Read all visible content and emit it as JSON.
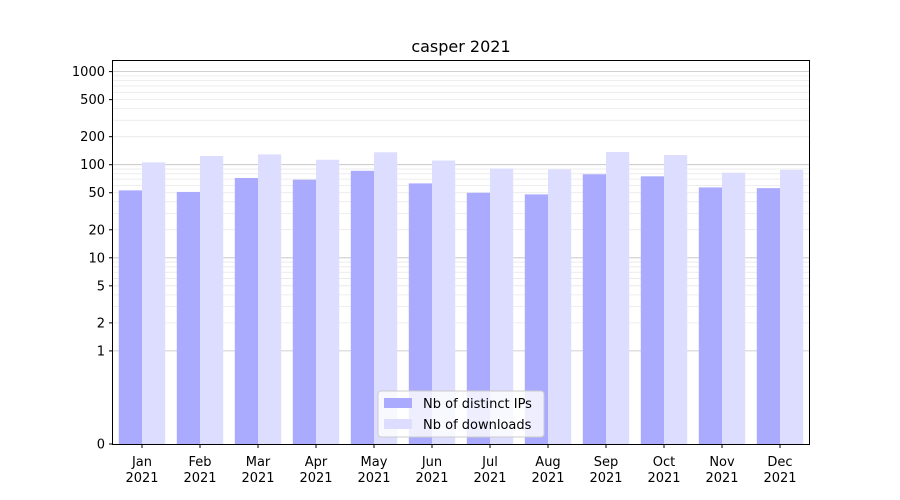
{
  "chart_data": {
    "type": "bar",
    "title": "casper 2021",
    "xlabel": "",
    "ylabel": "",
    "yscale": "symlog",
    "ylim": [
      0,
      1300
    ],
    "yticks": [
      0,
      1,
      2,
      5,
      10,
      20,
      50,
      100,
      200,
      500,
      1000
    ],
    "ytick_labels": [
      "0",
      "1",
      "2",
      "5",
      "10",
      "20",
      "50",
      "100",
      "200",
      "500",
      "1000"
    ],
    "categories": [
      [
        "Jan",
        "2021"
      ],
      [
        "Feb",
        "2021"
      ],
      [
        "Mar",
        "2021"
      ],
      [
        "Apr",
        "2021"
      ],
      [
        "May",
        "2021"
      ],
      [
        "Jun",
        "2021"
      ],
      [
        "Jul",
        "2021"
      ],
      [
        "Aug",
        "2021"
      ],
      [
        "Sep",
        "2021"
      ],
      [
        "Oct",
        "2021"
      ],
      [
        "Nov",
        "2021"
      ],
      [
        "Dec",
        "2021"
      ]
    ],
    "series": [
      {
        "name": "Nb of distinct IPs",
        "color": "#aaaaff",
        "values": [
          53,
          51,
          72,
          69,
          86,
          63,
          50,
          48,
          79,
          75,
          57,
          56
        ]
      },
      {
        "name": "Nb of downloads",
        "color": "#ddddff",
        "values": [
          106,
          124,
          129,
          113,
          136,
          111,
          91,
          89,
          137,
          127,
          82,
          88
        ]
      }
    ],
    "grid": true,
    "legend_position": "bottom-center"
  }
}
